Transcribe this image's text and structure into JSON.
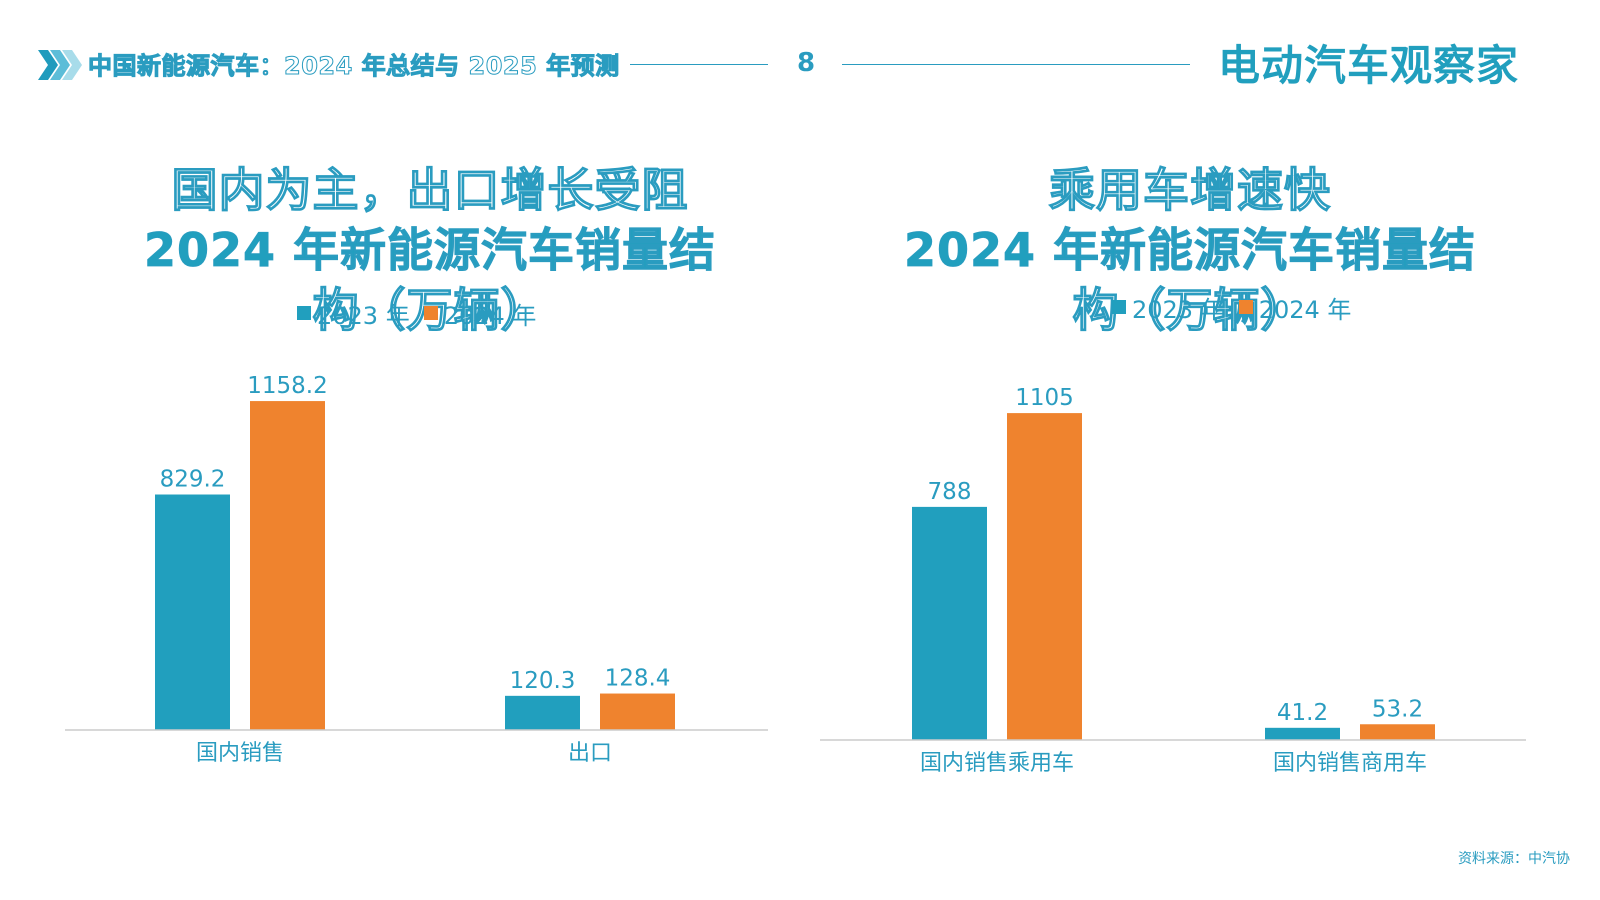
{
  "header": {
    "title": "中国新能源汽车：2024 年总结与 2025 年预测",
    "page_number": "8",
    "brand": "电动汽车观察家",
    "accent_color": "#2a9cc0"
  },
  "colors": {
    "series_2023": "#219fbe",
    "series_2024": "#ef832e",
    "axis": "#cccccc"
  },
  "source": "资料来源：中汽协",
  "chart_data": [
    {
      "type": "bar",
      "title_lines": [
        "国内为主，出口增长受阻",
        "2024 年新能源汽车销量结",
        "构（万辆）"
      ],
      "categories": [
        "国内销售",
        "出口"
      ],
      "series": [
        {
          "name": "2023 年",
          "values": [
            829.2,
            120.3
          ]
        },
        {
          "name": "2024 年",
          "values": [
            1158.2,
            128.4
          ]
        }
      ],
      "ylim": [
        0,
        1250
      ],
      "legend_position": "top-center",
      "grid": false
    },
    {
      "type": "bar",
      "title_lines": [
        "乘用车增速快",
        "2024 年新能源汽车销量结",
        "构（万辆）"
      ],
      "categories": [
        "国内销售乘用车",
        "国内销售商用车"
      ],
      "series": [
        {
          "name": "2023 年",
          "values": [
            788,
            41.2
          ]
        },
        {
          "name": "2024 年",
          "values": [
            1105,
            53.2
          ]
        }
      ],
      "ylim": [
        0,
        1200
      ],
      "legend_position": "top-center",
      "grid": false
    }
  ]
}
